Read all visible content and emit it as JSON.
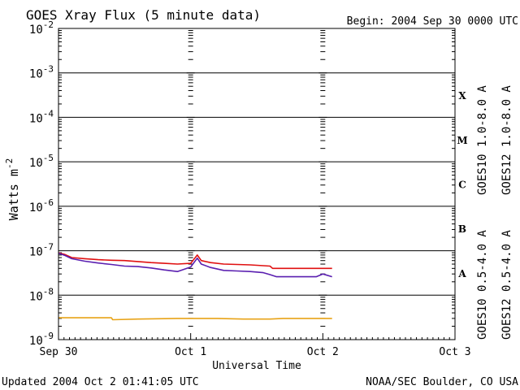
{
  "colors": {
    "goes10_long": "#5a1fb0",
    "goes12_long": "#e01010",
    "goes10_short": "#e8a317",
    "goes12_short": "#2a2ad0",
    "frame": "#000000"
  },
  "chart_data": {
    "type": "line",
    "title": "GOES Xray Flux (5 minute data)",
    "begin_label": "Begin:  2004 Sep 30 0000 UTC",
    "xlabel": "Universal Time",
    "ylabel": "Watts m",
    "ylabel_exponent": "-2",
    "yscale": "log",
    "ylim": [
      1e-09,
      0.01
    ],
    "xlim_days": [
      0,
      3
    ],
    "grid": "horizontal at each decade",
    "x_ticks": [
      {
        "day": 0,
        "label": "Sep 30"
      },
      {
        "day": 1,
        "label": "Oct 1"
      },
      {
        "day": 2,
        "label": "Oct 2"
      },
      {
        "day": 3,
        "label": "Oct 3"
      }
    ],
    "y_ticks": [
      {
        "exp": -2,
        "base": "10",
        "sup": "-2"
      },
      {
        "exp": -3,
        "base": "10",
        "sup": "-3"
      },
      {
        "exp": -4,
        "base": "10",
        "sup": "-4"
      },
      {
        "exp": -5,
        "base": "10",
        "sup": "-5"
      },
      {
        "exp": -6,
        "base": "10",
        "sup": "-6"
      },
      {
        "exp": -7,
        "base": "10",
        "sup": "-7"
      },
      {
        "exp": -8,
        "base": "10",
        "sup": "-8"
      },
      {
        "exp": -9,
        "base": "10",
        "sup": "-9"
      }
    ],
    "flare_classes": [
      {
        "label": "X",
        "exp_mid": -3.5
      },
      {
        "label": "M",
        "exp_mid": -4.5
      },
      {
        "label": "C",
        "exp_mid": -5.5
      },
      {
        "label": "B",
        "exp_mid": -6.5
      },
      {
        "label": "A",
        "exp_mid": -7.5
      }
    ],
    "legend_placement": "right, rotated",
    "series": [
      {
        "name": "GOES12 1.0-8.0 A",
        "color_key": "goes12_long",
        "points": [
          [
            0.0,
            9e-08
          ],
          [
            0.05,
            8.2e-08
          ],
          [
            0.1,
            7e-08
          ],
          [
            0.2,
            6.6e-08
          ],
          [
            0.3,
            6.3e-08
          ],
          [
            0.4,
            6.1e-08
          ],
          [
            0.5,
            6e-08
          ],
          [
            0.6,
            5.7e-08
          ],
          [
            0.7,
            5.4e-08
          ],
          [
            0.8,
            5.2e-08
          ],
          [
            0.9,
            5e-08
          ],
          [
            1.0,
            5.2e-08
          ],
          [
            1.05,
            8e-08
          ],
          [
            1.08,
            6e-08
          ],
          [
            1.15,
            5.4e-08
          ],
          [
            1.25,
            5e-08
          ],
          [
            1.35,
            4.9e-08
          ],
          [
            1.45,
            4.8e-08
          ],
          [
            1.55,
            4.6e-08
          ],
          [
            1.6,
            4.5e-08
          ],
          [
            1.62,
            4e-08
          ],
          [
            1.8,
            4e-08
          ],
          [
            2.0,
            4e-08
          ],
          [
            2.07,
            4e-08
          ]
        ]
      },
      {
        "name": "GOES10 1.0-8.0 A",
        "color_key": "goes10_long",
        "points": [
          [
            0.0,
            8.8e-08
          ],
          [
            0.05,
            7.8e-08
          ],
          [
            0.1,
            6.6e-08
          ],
          [
            0.2,
            5.8e-08
          ],
          [
            0.3,
            5.3e-08
          ],
          [
            0.4,
            4.9e-08
          ],
          [
            0.5,
            4.5e-08
          ],
          [
            0.6,
            4.4e-08
          ],
          [
            0.7,
            4.1e-08
          ],
          [
            0.8,
            3.7e-08
          ],
          [
            0.9,
            3.4e-08
          ],
          [
            1.0,
            4.3e-08
          ],
          [
            1.05,
            6.8e-08
          ],
          [
            1.08,
            5e-08
          ],
          [
            1.15,
            4.2e-08
          ],
          [
            1.25,
            3.6e-08
          ],
          [
            1.35,
            3.5e-08
          ],
          [
            1.45,
            3.4e-08
          ],
          [
            1.55,
            3.2e-08
          ],
          [
            1.6,
            2.9e-08
          ],
          [
            1.65,
            2.6e-08
          ],
          [
            1.8,
            2.6e-08
          ],
          [
            1.95,
            2.6e-08
          ],
          [
            2.0,
            3e-08
          ],
          [
            2.07,
            2.6e-08
          ]
        ]
      },
      {
        "name": "GOES10 0.5-4.0 A",
        "color_key": "goes10_short",
        "points": [
          [
            0.0,
            3.1e-09
          ],
          [
            0.4,
            3.1e-09
          ],
          [
            0.41,
            2.8e-09
          ],
          [
            0.6,
            2.9e-09
          ],
          [
            0.9,
            3e-09
          ],
          [
            1.2,
            3e-09
          ],
          [
            1.4,
            2.9e-09
          ],
          [
            1.6,
            2.9e-09
          ],
          [
            1.7,
            3e-09
          ],
          [
            2.07,
            3e-09
          ]
        ]
      },
      {
        "name": "GOES12 0.5-4.0 A",
        "color_key": "goes12_short",
        "points": []
      }
    ],
    "footer_left": "Updated 2004 Oct  2 01:41:05 UTC",
    "footer_right": "NOAA/SEC Boulder, CO USA"
  }
}
